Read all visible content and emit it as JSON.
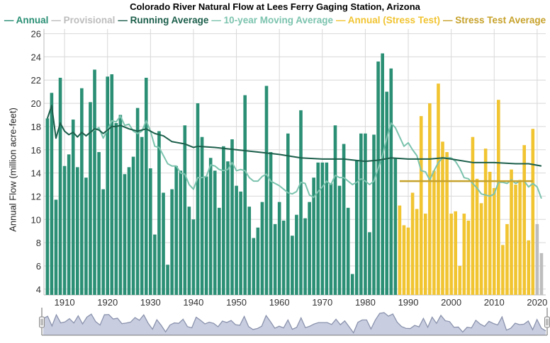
{
  "chart_data": {
    "type": "bar",
    "title": "Colorado River Natural Flow at Lees Ferry Gaging Station, Arizona",
    "ylabel": "Annual Flow (million acre-feet)",
    "xlabel": "",
    "ylim": [
      3.5,
      26.4
    ],
    "xlim": [
      1905.2,
      2022
    ],
    "yticks": [
      4,
      6,
      8,
      10,
      12,
      14,
      16,
      18,
      20,
      22,
      24,
      26
    ],
    "xticks": [
      1910,
      1920,
      1930,
      1940,
      1950,
      1960,
      1970,
      1980,
      1990,
      2000,
      2010,
      2020
    ],
    "grid": true,
    "legend_position": "top",
    "colors": {
      "annual": "#2a8f74",
      "provisional": "#bdbdbd",
      "running": "#1b5e4a",
      "moving": "#7cc3ae",
      "stress": "#f1c432",
      "stress_avg": "#c7a22c",
      "navigator": "#8a93ad"
    },
    "legend": [
      {
        "label": "Annual",
        "key": "annual"
      },
      {
        "label": "Provisional",
        "key": "provisional"
      },
      {
        "label": "Running Average",
        "key": "running"
      },
      {
        "label": "10-year Moving Average",
        "key": "moving"
      },
      {
        "label": "Annual (Stress Test)",
        "key": "stress"
      },
      {
        "label": "Stress Test Average",
        "key": "stress_avg"
      }
    ],
    "annual": {
      "start_year": 1906,
      "values": [
        18.7,
        20.9,
        11.7,
        22.2,
        14.6,
        15.6,
        18.6,
        14.5,
        21.3,
        13.6,
        20.1,
        22.9,
        15.8,
        12.6,
        22.3,
        22.5,
        18.3,
        19.0,
        13.9,
        14.5,
        15.4,
        19.6,
        17.1,
        22.2,
        14.4,
        8.7,
        17.6,
        12.3,
        6.1,
        12.6,
        14.6,
        14.2,
        18.1,
        11.1,
        10.0,
        20.0,
        17.1,
        13.7,
        15.3,
        14.2,
        11.0,
        16.3,
        15.0,
        16.9,
        12.9,
        12.4,
        20.7,
        11.1,
        8.4,
        9.3,
        11.5,
        21.5,
        15.8,
        9.6,
        11.5,
        9.9,
        17.4,
        8.6,
        10.4,
        19.4,
        10.1,
        11.5,
        13.6,
        14.9,
        14.9,
        14.9,
        13.1,
        18.1,
        12.9,
        16.5,
        11.0,
        5.3,
        15.1,
        17.4,
        17.4,
        8.9,
        17.3,
        23.6,
        24.3,
        21.0,
        23.0,
        15.3
      ]
    },
    "stress_test": {
      "start_year": 1988,
      "values": [
        11.2,
        9.5,
        9.3,
        12.3,
        10.9,
        18.9,
        10.5,
        20.0,
        14.2,
        21.7,
        16.7,
        15.8,
        10.5,
        10.7,
        6.0,
        10.5,
        9.9,
        17.1,
        13.5,
        11.4,
        16.1,
        14.1,
        12.7,
        20.3,
        7.8,
        9.6,
        14.3,
        13.0,
        13.4,
        16.4,
        8.2,
        17.8
      ]
    },
    "provisional": {
      "start_year": 2020,
      "values": [
        9.6,
        7.1
      ]
    },
    "running_average": {
      "x": [
        1906,
        1907,
        1908,
        1909,
        1910,
        1911,
        1912,
        1913,
        1914,
        1915,
        1916,
        1917,
        1918,
        1919,
        1920,
        1921,
        1922,
        1923,
        1925,
        1927,
        1929,
        1931,
        1933,
        1935,
        1938,
        1940,
        1941,
        1945,
        1950,
        1955,
        1960,
        1965,
        1970,
        1975,
        1980,
        1983,
        1986,
        1990,
        1995,
        1998,
        2000,
        2005,
        2010,
        2015,
        2018,
        2021
      ],
      "y": [
        18.7,
        19.8,
        17.0,
        18.3,
        17.6,
        17.3,
        17.5,
        17.1,
        17.5,
        17.2,
        17.5,
        17.8,
        17.7,
        17.4,
        17.7,
        18.0,
        18.0,
        18.1,
        17.8,
        17.6,
        17.8,
        17.4,
        17.2,
        16.7,
        16.5,
        16.2,
        16.3,
        16.2,
        16.0,
        15.8,
        15.6,
        15.3,
        15.2,
        15.2,
        15.0,
        15.1,
        15.3,
        15.2,
        15.2,
        15.3,
        15.2,
        14.9,
        14.9,
        14.8,
        14.8,
        14.6
      ]
    },
    "moving_average": {
      "start_year": 1915,
      "values": [
        17.2,
        17.5,
        17.7,
        17.9,
        17.0,
        17.7,
        18.5,
        18.4,
        18.9,
        18.1,
        18.2,
        17.6,
        17.4,
        17.6,
        18.5,
        17.6,
        16.3,
        16.2,
        15.5,
        14.8,
        14.6,
        14.6,
        14.0,
        13.9,
        13.0,
        12.6,
        13.6,
        13.6,
        13.7,
        14.7,
        14.6,
        14.3,
        14.2,
        14.3,
        14.9,
        14.2,
        14.3,
        14.2,
        13.6,
        13.3,
        13.3,
        13.7,
        13.9,
        13.3,
        13.1,
        12.9,
        12.6,
        12.3,
        12.2,
        12.4,
        13.2,
        13.1,
        12.1,
        11.9,
        12.4,
        12.8,
        13.3,
        13.0,
        13.8,
        13.6,
        13.6,
        13.3,
        13.0,
        13.2,
        13.5,
        13.3,
        13.0,
        13.3,
        14.4,
        15.5,
        17.0,
        18.3,
        17.9,
        17.1,
        16.3,
        16.6,
        16.0,
        15.5,
        14.2,
        14.1,
        13.4,
        14.2,
        14.9,
        15.3,
        15.3,
        15.3,
        15.0,
        14.4,
        13.6,
        13.5,
        13.1,
        12.7,
        12.2,
        12.1,
        12.0,
        12.2,
        13.2,
        13.2,
        13.1,
        13.4,
        13.1,
        13.3,
        13.3,
        12.8,
        13.1,
        12.8,
        11.8
      ]
    },
    "stress_test_average": {
      "x": [
        1988,
        2019
      ],
      "y": [
        13.3,
        13.3
      ]
    }
  }
}
